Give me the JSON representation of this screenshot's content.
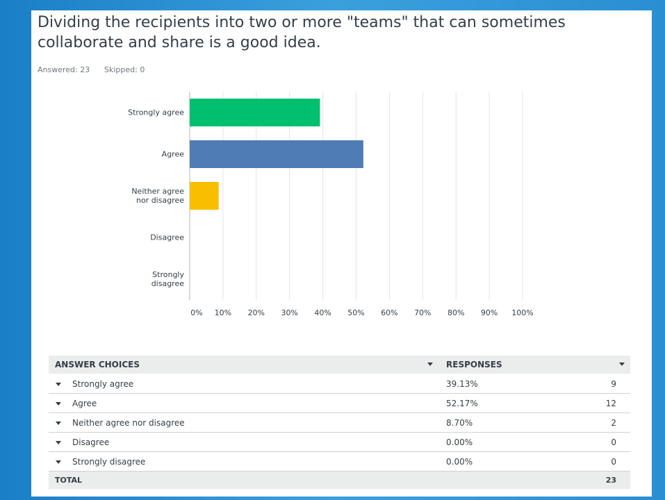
{
  "question": {
    "title": "Dividing the recipients into two or more \"teams\" that can sometimes collaborate and share is a good idea.",
    "answered": "Answered: 23",
    "skipped": "Skipped: 0"
  },
  "chart_data": {
    "type": "bar",
    "orientation": "horizontal",
    "categories": [
      "Strongly agree",
      "Agree",
      "Neither agree nor disagree",
      "Disagree",
      "Strongly disagree"
    ],
    "values": [
      39.13,
      52.17,
      8.7,
      0,
      0
    ],
    "colors": [
      "#00bf6f",
      "#507cb6",
      "#f9be00",
      "#6bc8cd",
      "#d25f90"
    ],
    "xlim": [
      0,
      100
    ],
    "xticks": [
      {
        "value": 0,
        "label": "0%"
      },
      {
        "value": 10,
        "label": "10%"
      },
      {
        "value": 20,
        "label": "20%"
      },
      {
        "value": 30,
        "label": "30%"
      },
      {
        "value": 40,
        "label": "40%"
      },
      {
        "value": 50,
        "label": "50%"
      },
      {
        "value": 60,
        "label": "60%"
      },
      {
        "value": 70,
        "label": "70%"
      },
      {
        "value": 80,
        "label": "80%"
      },
      {
        "value": 90,
        "label": "90%"
      },
      {
        "value": 100,
        "label": "100%"
      }
    ],
    "grid": true
  },
  "table": {
    "headers": [
      "ANSWER CHOICES",
      "RESPONSES"
    ],
    "rows": [
      [
        "Strongly agree",
        "39.13%",
        9
      ],
      [
        "Agree",
        "52.17%",
        12
      ],
      [
        "Neither agree nor disagree",
        "8.70%",
        2
      ],
      [
        "Disagree",
        "0.00%",
        0
      ],
      [
        "Strongly disagree",
        "0.00%",
        0
      ]
    ],
    "total": [
      "TOTAL",
      23
    ]
  }
}
